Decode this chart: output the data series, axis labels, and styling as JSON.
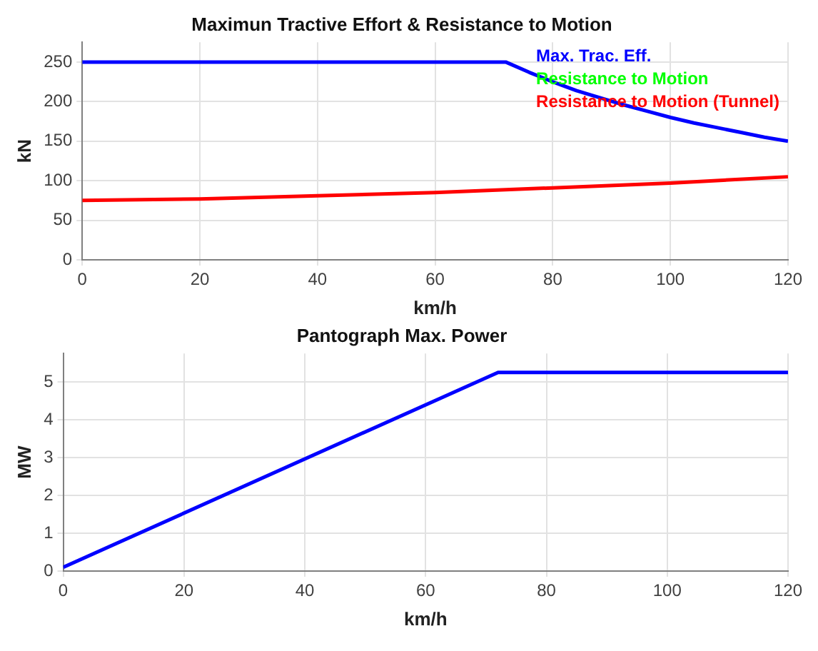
{
  "chart_data": [
    {
      "type": "line",
      "title": "Maximun Tractive Effort & Resistance to Motion",
      "xlabel": "km/h",
      "ylabel": "kN",
      "xlim": [
        0,
        120
      ],
      "xticks": [
        0,
        20,
        40,
        60,
        80,
        100,
        120
      ],
      "ylim": [
        0,
        275
      ],
      "yticks": [
        0,
        50,
        100,
        150,
        200,
        250
      ],
      "grid": true,
      "legend": "top right",
      "line_style": "solid",
      "marker": "none",
      "series": [
        {
          "name": "Max. Trac. Eff.",
          "color": "#0000ff",
          "x": [
            0,
            72,
            76,
            80,
            84,
            88,
            92,
            96,
            100,
            104,
            108,
            112,
            116,
            120
          ],
          "values": [
            250,
            250,
            237,
            225,
            214,
            205,
            196,
            188,
            180,
            173,
            167,
            161,
            155,
            150
          ]
        },
        {
          "name": "Resistance to Motion",
          "color": "#00ff00"
        },
        {
          "name": "Resistance to Motion (Tunnel)",
          "color": "#ff0000",
          "x": [
            0,
            20,
            40,
            60,
            80,
            100,
            120
          ],
          "values": [
            75,
            77,
            81,
            85,
            91,
            97,
            105
          ]
        }
      ]
    },
    {
      "type": "line",
      "title": "Pantograph Max. Power",
      "xlabel": "km/h",
      "ylabel": "MW",
      "xlim": [
        0,
        120
      ],
      "xticks": [
        0,
        20,
        40,
        60,
        80,
        100,
        120
      ],
      "ylim": [
        0,
        5.75
      ],
      "yticks": [
        0,
        1,
        2,
        3,
        4,
        5
      ],
      "grid": true,
      "line_style": "solid",
      "marker": "none",
      "series": [
        {
          "color": "#0000ff",
          "x": [
            0,
            72,
            120
          ],
          "values": [
            0.1,
            5.25,
            5.25
          ]
        }
      ]
    }
  ]
}
